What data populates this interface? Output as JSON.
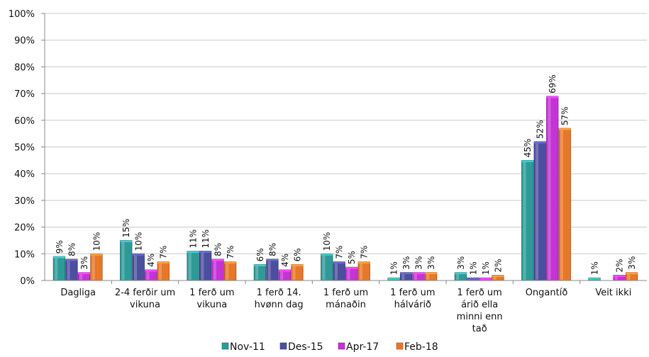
{
  "chart_data": {
    "type": "bar",
    "title": "",
    "xlabel": "",
    "ylabel": "",
    "ylim": [
      0,
      100
    ],
    "y_ticks": [
      "0%",
      "10%",
      "20%",
      "30%",
      "40%",
      "50%",
      "60%",
      "70%",
      "80%",
      "90%",
      "100%"
    ],
    "grid": true,
    "legend_position": "bottom",
    "categories": [
      [
        "Dagliga"
      ],
      [
        "2-4 ferðir um",
        "vikuna"
      ],
      [
        "1 ferð um",
        "vikuna"
      ],
      [
        "1 ferð 14.",
        "hvønn dag"
      ],
      [
        "1 ferð um",
        "mánaðin"
      ],
      [
        "1 ferð um",
        "hálvárið"
      ],
      [
        "1 ferð um",
        "árið ella",
        "minni enn",
        "tað"
      ],
      [
        "Ongantíð"
      ],
      [
        "Veit ikki"
      ]
    ],
    "series": [
      {
        "name": "Nov-11",
        "color": "#2E9A98",
        "values": [
          9,
          15,
          11,
          6,
          10,
          1,
          3,
          45,
          1
        ]
      },
      {
        "name": "Des-15",
        "color": "#4C4F9E",
        "values": [
          8,
          10,
          11,
          8,
          7,
          3,
          1,
          52,
          0
        ]
      },
      {
        "name": "Apr-17",
        "color": "#C533D6",
        "values": [
          3,
          4,
          8,
          4,
          5,
          3,
          1,
          69,
          2
        ]
      },
      {
        "name": "Feb-18",
        "color": "#E8772A",
        "values": [
          10,
          7,
          7,
          6,
          7,
          3,
          2,
          57,
          3
        ]
      }
    ],
    "data_labels": [
      [
        "9%",
        "8%",
        "3%",
        "10%"
      ],
      [
        "15%",
        "10%",
        "4%",
        "7%"
      ],
      [
        "11%",
        "11%",
        "8%",
        "7%"
      ],
      [
        "6%",
        "8%",
        "4%",
        "6%"
      ],
      [
        "10%",
        "7%",
        "5%",
        "7%"
      ],
      [
        "1%",
        "3%",
        "3%",
        "3%"
      ],
      [
        "3%",
        "1%",
        "1%",
        "2%"
      ],
      [
        "45%",
        "52%",
        "69%",
        "57%"
      ],
      [
        "1%",
        "",
        "2%",
        "3%"
      ]
    ]
  }
}
